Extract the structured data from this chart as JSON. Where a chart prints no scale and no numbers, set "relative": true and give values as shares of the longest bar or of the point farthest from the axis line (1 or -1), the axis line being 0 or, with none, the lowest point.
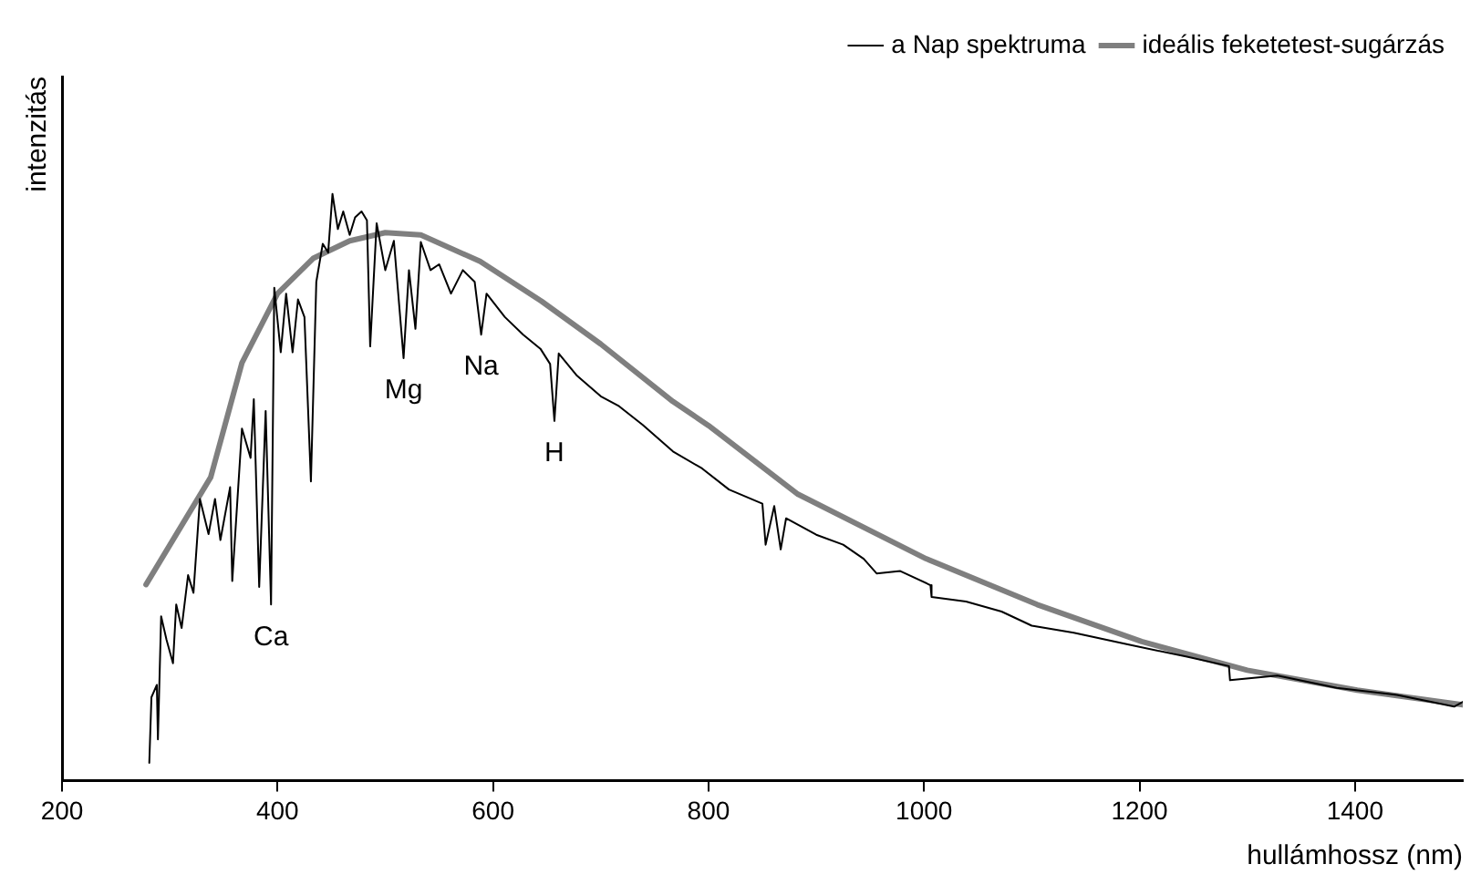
{
  "chart_data": {
    "type": "line",
    "xlabel": "hullámhossz (nm)",
    "ylabel": "intenzitás",
    "relative": true,
    "xlim": [
      200,
      1500
    ],
    "xticks": [
      200,
      400,
      600,
      800,
      1000,
      1200,
      1400
    ],
    "grid": false,
    "legend": "top right",
    "annotations": [
      {
        "text": "Ca",
        "x": 394,
        "y": 0.3
      },
      {
        "text": "Mg",
        "x": 517,
        "y": 0.72
      },
      {
        "text": "Na",
        "x": 589,
        "y": 0.76
      },
      {
        "text": "H",
        "x": 657,
        "y": 0.613
      }
    ],
    "series": [
      {
        "name": "a Nap spektruma",
        "color": "#000000",
        "x": [
          281,
          283,
          288,
          289,
          292,
          297,
          303,
          306,
          311,
          317,
          322,
          328,
          336,
          342,
          347,
          356,
          358,
          367,
          375,
          378,
          383,
          389,
          394,
          397,
          403,
          408,
          414,
          419,
          425,
          431,
          436,
          442,
          447,
          451,
          456,
          461,
          467,
          472,
          478,
          483,
          486,
          492,
          500,
          508,
          517,
          522,
          528,
          533,
          542,
          550,
          561,
          572,
          583,
          589,
          594,
          611,
          628,
          644,
          653,
          657,
          661,
          678,
          700,
          717,
          739,
          767,
          794,
          819,
          850,
          853,
          861,
          867,
          872,
          900,
          925,
          944,
          956,
          978,
          1006,
          1007,
          1039,
          1072,
          1100,
          1139,
          1189,
          1244,
          1283,
          1284,
          1328,
          1383,
          1439,
          1492,
          1500
        ],
        "values": [
          0.03,
          0.142,
          0.163,
          0.07,
          0.28,
          0.24,
          0.2,
          0.3,
          0.26,
          0.35,
          0.32,
          0.48,
          0.42,
          0.48,
          0.41,
          0.5,
          0.34,
          0.6,
          0.55,
          0.65,
          0.33,
          0.63,
          0.3,
          0.84,
          0.73,
          0.83,
          0.73,
          0.82,
          0.79,
          0.51,
          0.85,
          0.915,
          0.9,
          1.0,
          0.94,
          0.97,
          0.93,
          0.96,
          0.97,
          0.955,
          0.74,
          0.95,
          0.87,
          0.92,
          0.72,
          0.87,
          0.77,
          0.918,
          0.87,
          0.88,
          0.83,
          0.87,
          0.85,
          0.76,
          0.83,
          0.79,
          0.76,
          0.736,
          0.71,
          0.613,
          0.728,
          0.69,
          0.655,
          0.638,
          0.606,
          0.561,
          0.532,
          0.496,
          0.472,
          0.402,
          0.468,
          0.394,
          0.447,
          0.419,
          0.402,
          0.378,
          0.353,
          0.357,
          0.333,
          0.313,
          0.305,
          0.288,
          0.264,
          0.252,
          0.232,
          0.211,
          0.195,
          0.171,
          0.179,
          0.158,
          0.146,
          0.126,
          0.134
        ]
      },
      {
        "name": "ideális feketetest-sugárzás",
        "color": "#7f7f7f",
        "x": [
          278,
          338,
          367,
          400,
          433,
          467,
          500,
          533,
          588,
          645,
          700,
          767,
          800,
          883,
          1002,
          1105,
          1202,
          1300,
          1402,
          1500
        ],
        "values": [
          0.334,
          0.517,
          0.712,
          0.83,
          0.89,
          0.92,
          0.934,
          0.93,
          0.885,
          0.817,
          0.744,
          0.646,
          0.605,
          0.488,
          0.378,
          0.3,
          0.237,
          0.188,
          0.154,
          0.129
        ]
      }
    ]
  }
}
